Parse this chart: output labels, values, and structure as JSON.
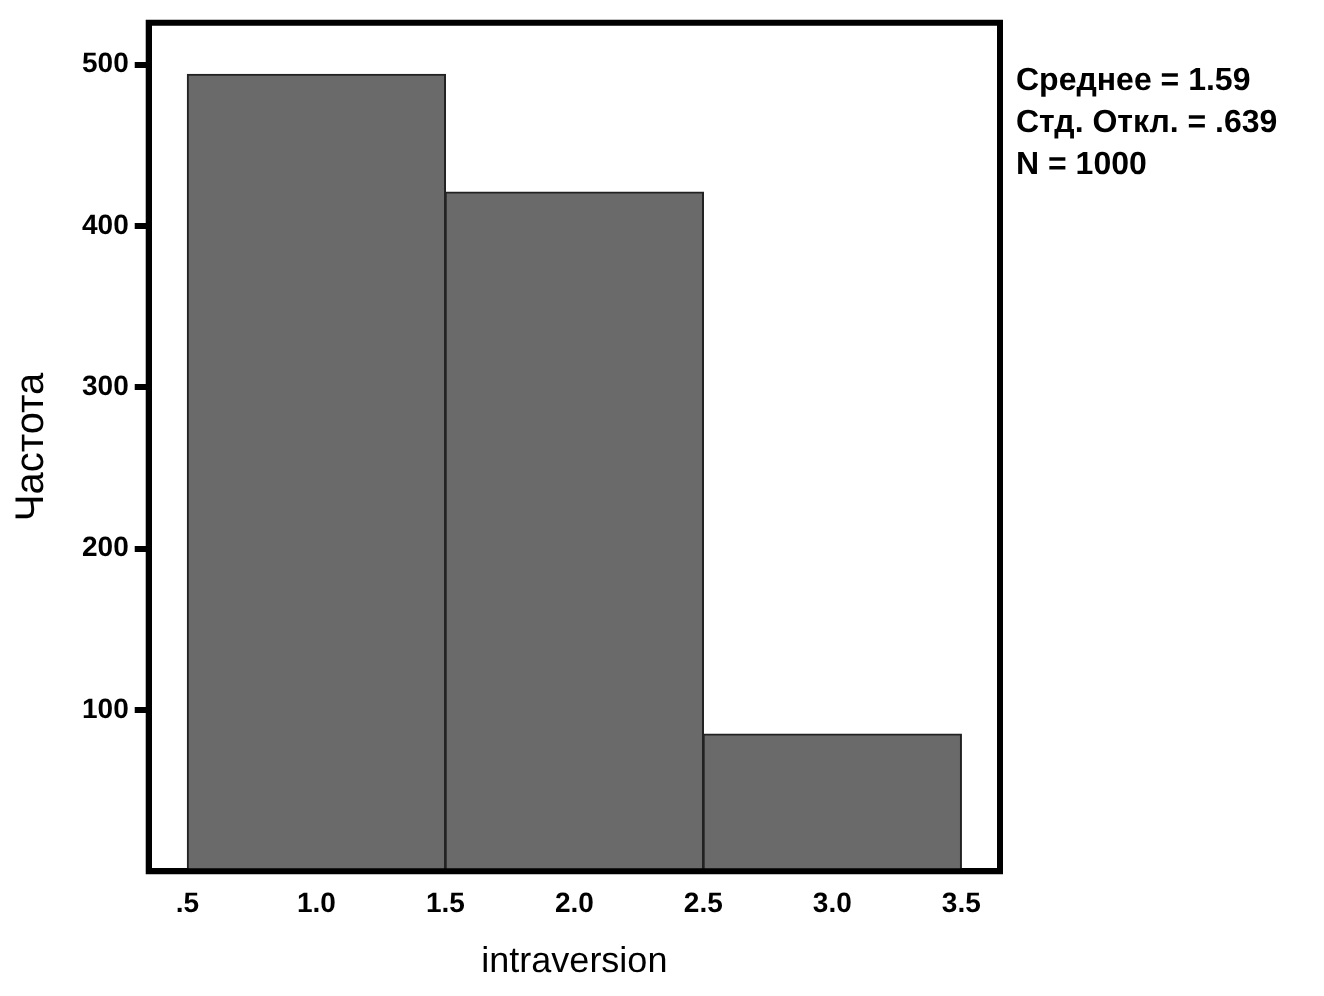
{
  "chart_data": {
    "type": "histogram",
    "xlabel": "intraversion",
    "ylabel": "Частота",
    "bins": [
      0.5,
      1.5,
      2.5,
      3.5
    ],
    "values": [
      494,
      421,
      85
    ],
    "color": "#6a6a6a",
    "xlim": [
      0.35,
      3.65
    ],
    "ylim": [
      0,
      526
    ],
    "xticks": [
      {
        "value": 0.5,
        "label": ".5"
      },
      {
        "value": 1,
        "label": "1.0"
      },
      {
        "value": 1.5,
        "label": "1.5"
      },
      {
        "value": 2,
        "label": "2.0"
      },
      {
        "value": 2.5,
        "label": "2.5"
      },
      {
        "value": 3,
        "label": "3.0"
      },
      {
        "value": 3.5,
        "label": "3.5"
      }
    ],
    "yticks": [
      100,
      200,
      300,
      400,
      500
    ],
    "grid": false,
    "legend": false,
    "annotations": [
      "Среднее = 1.59",
      "Стд. Откл. = .639",
      "N = 1000"
    ]
  }
}
